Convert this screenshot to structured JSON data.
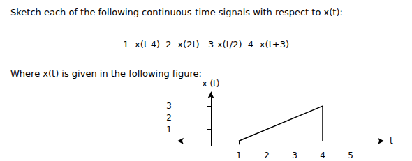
{
  "chart_data": {
    "type": "line",
    "title": "Sketch each of the following continuous-time signals with respect to x(t):",
    "annotations": [
      "1- x(t-4)  2- x(2t)   3-x(t/2)  4- x(t+3)",
      "Where x(t) is given in the following figure:"
    ],
    "x": [
      1,
      4,
      4
    ],
    "values": [
      0,
      3,
      0
    ],
    "color": "#000000",
    "xlabel": "t",
    "ylabel": "x (t)",
    "xlim": [
      -1.2,
      6.2
    ],
    "ylim": [
      -0.4,
      4.2
    ],
    "xticks": [
      1,
      2,
      3,
      4,
      5
    ],
    "yticks": [
      1,
      2,
      3
    ],
    "grid": false
  }
}
